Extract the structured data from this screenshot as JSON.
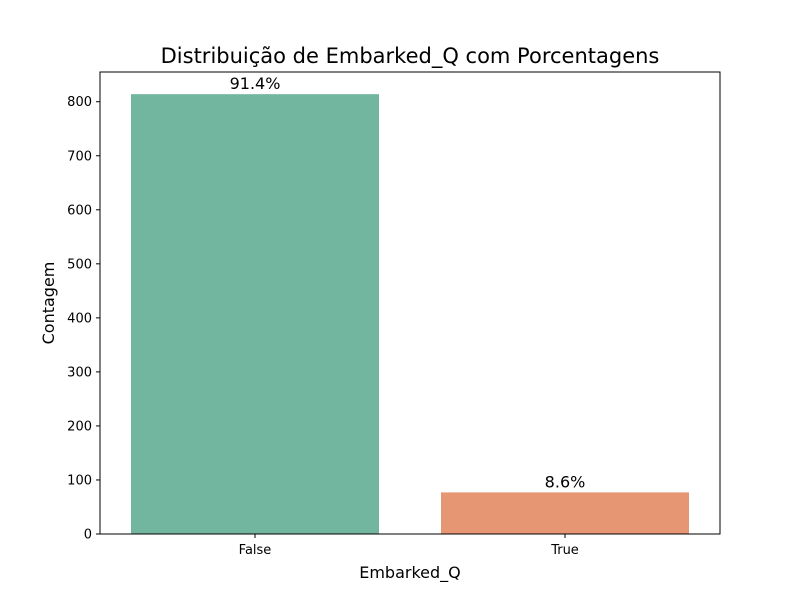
{
  "chart_data": {
    "type": "bar",
    "title": "Distribuição de Embarked_Q com Porcentagens",
    "xlabel": "Embarked_Q",
    "ylabel": "Contagem",
    "categories": [
      "False",
      "True"
    ],
    "values": [
      814,
      77
    ],
    "data_labels": [
      "91.4%",
      "8.6%"
    ],
    "colors": [
      "#73b6a0",
      "#e79674"
    ],
    "ylim": [
      0,
      855
    ],
    "yticks": [
      0,
      100,
      200,
      300,
      400,
      500,
      600,
      700,
      800
    ],
    "grid": false,
    "legend": "none"
  }
}
